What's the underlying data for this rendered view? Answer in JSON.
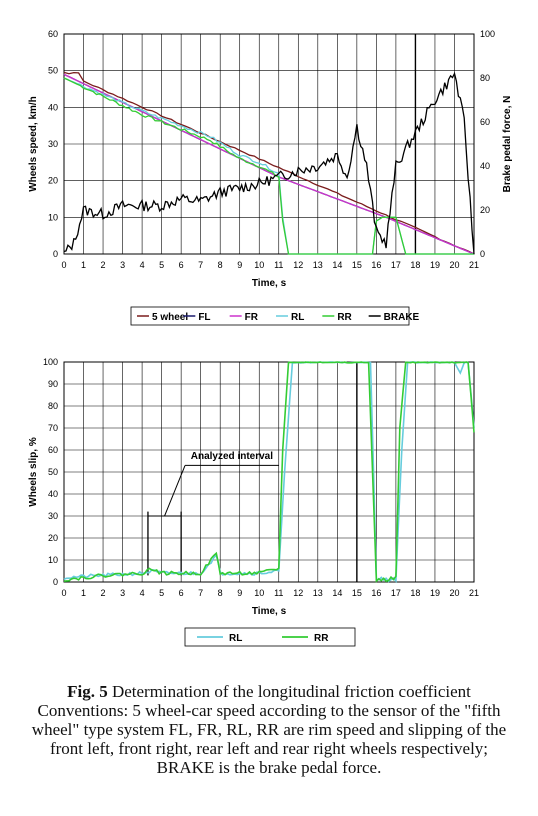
{
  "chart_data": [
    {
      "type": "line",
      "xlabel": "Time, s",
      "ylabel": "Wheels speed, km/h",
      "y2label": "Brake pedal force, N",
      "xlim": [
        0,
        21
      ],
      "ylim": [
        0,
        60
      ],
      "y2lim": [
        0,
        100
      ],
      "xticks": [
        "0",
        "1",
        "2",
        "3",
        "4",
        "5",
        "6",
        "7",
        "8",
        "9",
        "10",
        "11",
        "12",
        "13",
        "14",
        "15",
        "16",
        "17",
        "18",
        "19",
        "20",
        "21"
      ],
      "yticks": [
        "0",
        "10",
        "20",
        "30",
        "40",
        "50",
        "60"
      ],
      "y2ticks": [
        "0",
        "20",
        "40",
        "60",
        "80",
        "100"
      ],
      "vline_x": 18,
      "legend": [
        "5 wheel",
        "FL",
        "FR",
        "RL",
        "RR",
        "BRAKE"
      ],
      "legend_position": "bottom",
      "series": [
        {
          "name": "5 wheel",
          "color": "#7a1c1c",
          "x": [
            0,
            21
          ],
          "y": [
            49.5,
            0
          ],
          "shape": "linear-decay"
        },
        {
          "name": "FL",
          "color": "#1a1a6e",
          "x": [
            0,
            11,
            14,
            16.5,
            21
          ],
          "y": [
            49,
            21,
            15,
            10,
            0
          ]
        },
        {
          "name": "FR",
          "color": "#cc33cc",
          "x": [
            0,
            11,
            14,
            16.5,
            21
          ],
          "y": [
            49,
            21,
            15,
            10,
            0
          ]
        },
        {
          "name": "RL",
          "color": "#66ccdd",
          "x": [
            0,
            4,
            7.5,
            9,
            10,
            11,
            11.2,
            11.5,
            15.8,
            16,
            16.3,
            17,
            17.5,
            21
          ],
          "y": [
            48,
            39,
            32,
            27,
            25,
            22,
            10,
            0,
            0,
            9,
            10,
            10,
            0,
            0
          ]
        },
        {
          "name": "RR",
          "color": "#33cc33",
          "x": [
            0,
            4,
            7.5,
            9,
            10,
            11,
            11.2,
            11.5,
            15.8,
            16,
            16.3,
            17,
            17.5,
            21
          ],
          "y": [
            48,
            38,
            31,
            26,
            24,
            21,
            9,
            0,
            0,
            9,
            10,
            10,
            0,
            0
          ]
        },
        {
          "name": "BRAKE",
          "color": "#000000",
          "x": [
            0,
            0.5,
            1,
            2,
            3,
            4,
            5,
            6,
            7,
            8,
            9,
            10,
            11,
            12,
            13,
            14,
            14.5,
            15,
            15.5,
            16,
            16.5,
            17,
            18,
            19,
            20,
            20.5,
            21
          ],
          "y2": [
            0,
            5,
            20,
            18,
            22,
            22,
            22,
            25,
            24,
            28,
            30,
            32,
            35,
            38,
            40,
            45,
            35,
            58,
            40,
            10,
            5,
            40,
            55,
            70,
            82,
            60,
            0
          ]
        }
      ]
    },
    {
      "type": "line",
      "xlabel": "Time, s",
      "ylabel": "Wheels slip, %",
      "xlim": [
        0,
        21
      ],
      "ylim": [
        0,
        100
      ],
      "xticks": [
        "0",
        "1",
        "2",
        "3",
        "4",
        "5",
        "6",
        "7",
        "8",
        "9",
        "10",
        "11",
        "12",
        "13",
        "14",
        "15",
        "16",
        "17",
        "18",
        "19",
        "20",
        "21"
      ],
      "yticks": [
        "0",
        "10",
        "20",
        "30",
        "40",
        "50",
        "60",
        "70",
        "80",
        "90",
        "100"
      ],
      "vline_x": 15,
      "annotation": "Analyzed interval",
      "analyzed_interval": [
        4.3,
        6.0
      ],
      "legend": [
        "RL",
        "RR"
      ],
      "legend_position": "bottom",
      "series": [
        {
          "name": "RL",
          "color": "#66ccdd",
          "x": [
            0,
            2,
            4,
            4.5,
            5,
            6,
            7,
            7.8,
            8,
            9,
            10,
            11,
            11.3,
            11.7,
            12,
            15,
            15.7,
            16,
            16.5,
            17,
            17.3,
            17.6,
            18,
            20,
            20.3,
            20.5,
            20.7,
            21
          ],
          "y": [
            2,
            3,
            4,
            5,
            4,
            4,
            4,
            12,
            4,
            4,
            4,
            5,
            50,
            100,
            100,
            100,
            100,
            2,
            1,
            1,
            60,
            100,
            100,
            100,
            95,
            100,
            100,
            70
          ]
        },
        {
          "name": "RR",
          "color": "#33cc33",
          "x": [
            0,
            2,
            4,
            4.5,
            5,
            6,
            7,
            7.8,
            8,
            9,
            10,
            11,
            11.2,
            11.5,
            12,
            15,
            15.6,
            16,
            16.5,
            17,
            17.2,
            17.5,
            18,
            20,
            20.3,
            20.5,
            20.7,
            21
          ],
          "y": [
            1,
            3,
            4,
            6,
            4,
            4,
            4,
            13,
            4,
            4,
            4,
            6,
            60,
            100,
            100,
            100,
            100,
            1,
            1,
            2,
            70,
            100,
            100,
            100,
            100,
            100,
            100,
            68
          ]
        }
      ]
    }
  ],
  "caption": {
    "label": "Fig. 5",
    "text": " Determination of the longitudinal friction coefficient Conventions: 5 wheel-car speed according to the sensor of the \"fifth wheel\" type system FL, FR, RL, RR are rim speed and slipping of the front left, front right, rear left and rear right wheels respectively; BRAKE is the brake pedal force."
  }
}
